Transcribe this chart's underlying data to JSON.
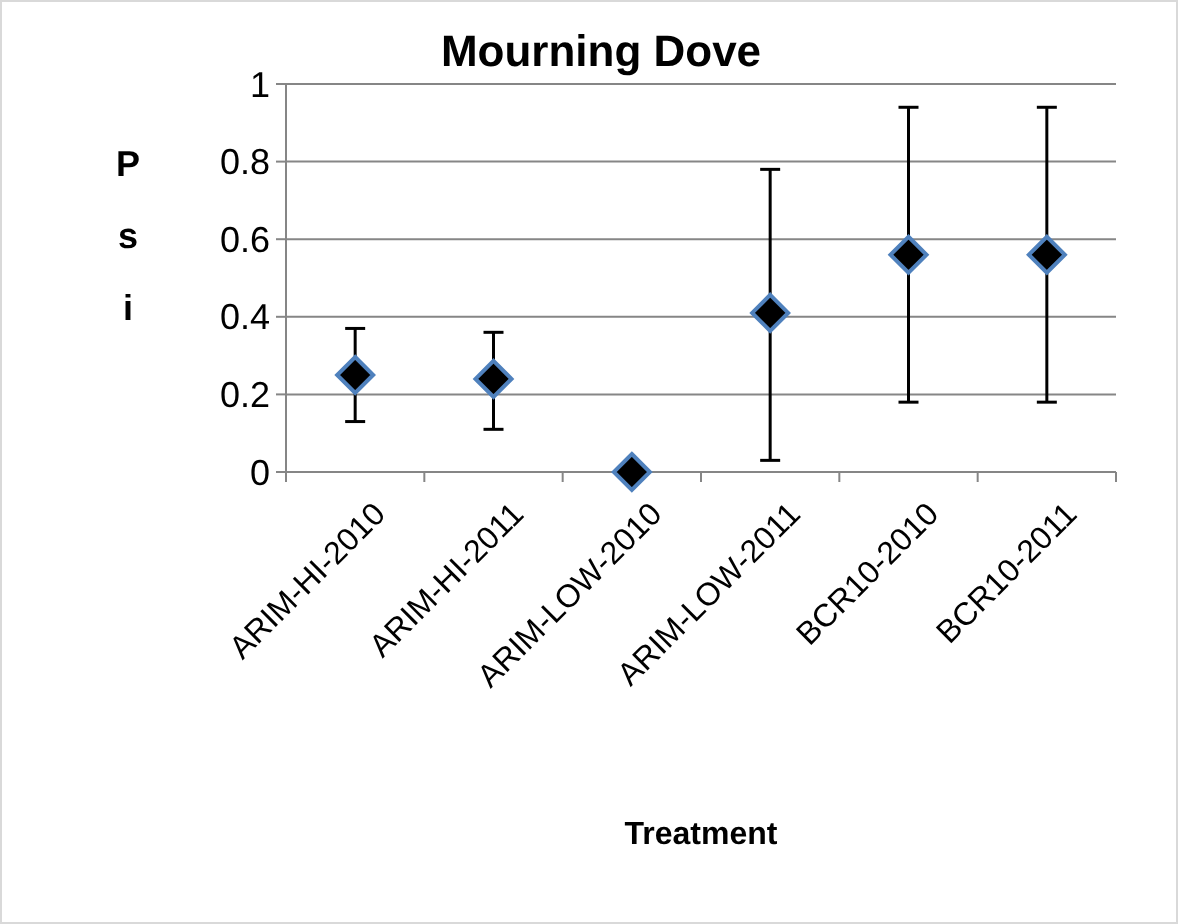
{
  "chart_data": {
    "type": "scatter",
    "title": "Mourning Dove",
    "xlabel": "Treatment",
    "ylabel": "Psi",
    "categories": [
      "ARIM-HI-2010",
      "ARIM-HI-2011",
      "ARIM-LOW-2010",
      "ARIM-LOW-2011",
      "BCR10-2010",
      "BCR10-2011"
    ],
    "series": [
      {
        "color": "#000000",
        "values": [
          0.25,
          0.24,
          0,
          0.41,
          0.56,
          0.56
        ],
        "errors": [
          [
            0.13,
            0.37
          ],
          [
            0.11,
            0.36
          ],
          null,
          [
            0.03,
            0.78
          ],
          [
            0.18,
            0.94
          ],
          [
            0.18,
            0.94
          ]
        ]
      }
    ],
    "ylim": [
      0,
      1
    ],
    "yticks": [
      0,
      {
        "value": 0.2,
        "label": "0.2"
      },
      {
        "value": 0.4,
        "label": "0.4"
      },
      {
        "value": 0.6,
        "label": "0.6"
      },
      {
        "value": 0.8,
        "label": "0.8"
      },
      1
    ],
    "grid": "y",
    "marker": "diamond"
  }
}
